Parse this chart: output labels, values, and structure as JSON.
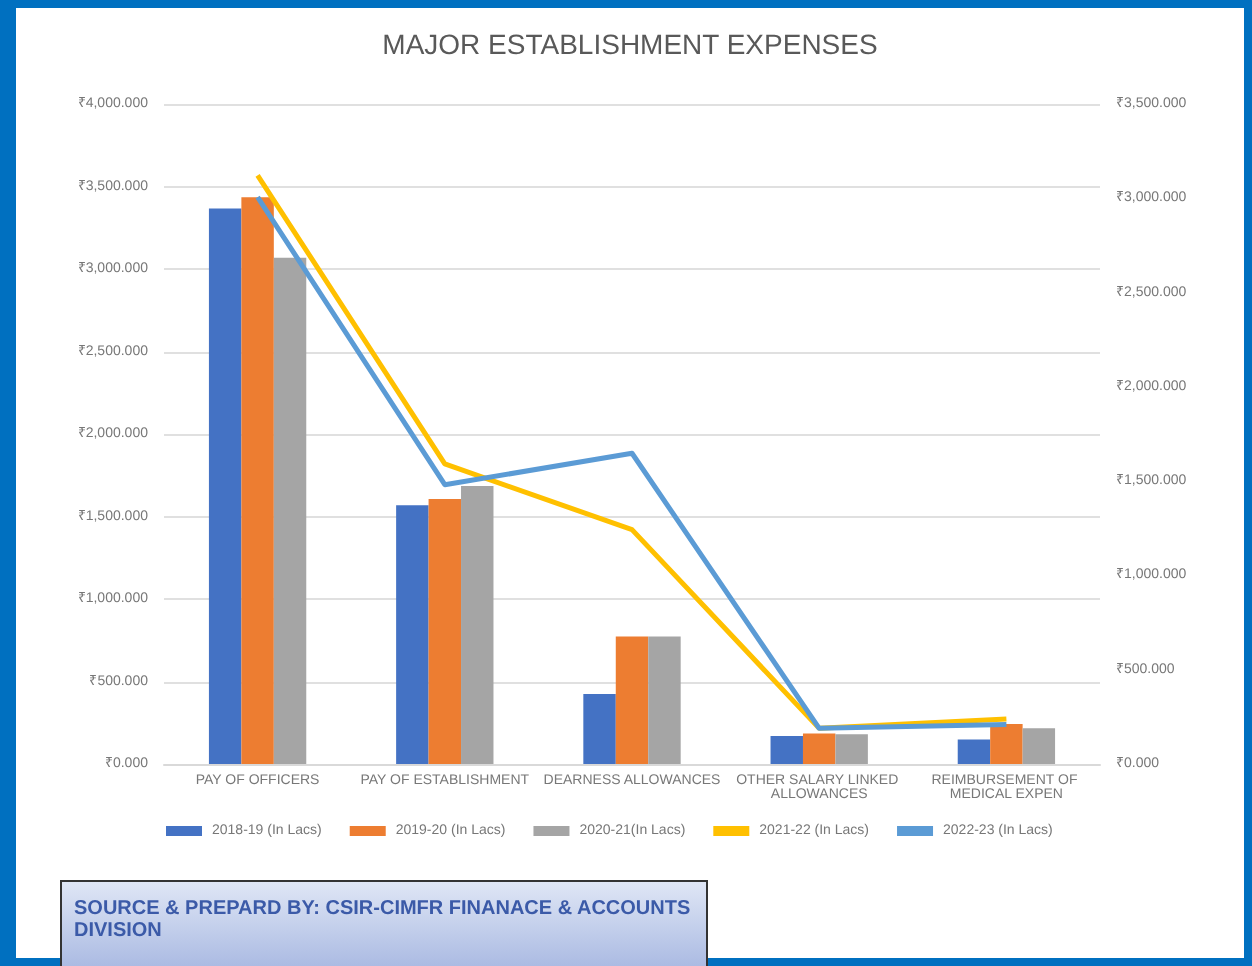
{
  "chart_data": {
    "type": "bar",
    "title": "MAJOR ESTABLISHMENT EXPENSES",
    "categories": [
      "PAY OF OFFICERS",
      "PAY OF ESTABLISHMENT",
      "DEARNESS ALLOWANCES",
      "OTHER SALARY LINKED ALLOWANCES",
      "REIMBURSEMENT OF MEDICAL EXPEN"
    ],
    "series": [
      {
        "name": "2018-19 (In Lacs)",
        "color": "#4472c4",
        "values": [
          3367,
          1568,
          424,
          170,
          148
        ]
      },
      {
        "name": "2019-20 (In Lacs)",
        "color": "#ed7d31",
        "values": [
          3435,
          1606,
          773,
          185,
          242
        ]
      },
      {
        "name": "2020-21(In Lacs)",
        "color": "#a5a5a5",
        "values": [
          3068,
          1685,
          773,
          180,
          216
        ]
      },
      {
        "name": "2021-22 (In Lacs)",
        "type": "line",
        "axis": "y2",
        "color": "#ffc000",
        "values": [
          3122,
          1591,
          1243,
          189,
          239
        ]
      },
      {
        "name": "2022-23 (In Lacs)",
        "type": "line",
        "axis": "y2",
        "color": "#5b9bd5",
        "values": [
          3006,
          1481,
          1648,
          189,
          209
        ]
      }
    ],
    "ylim": [
      0,
      4000
    ],
    "yticks": [
      {
        "value": 0,
        "label": "₹0.000"
      },
      {
        "value": 500,
        "label": "₹500.000"
      },
      {
        "value": 1000,
        "label": "₹1,000.000"
      },
      {
        "value": 1500,
        "label": "₹1,500.000"
      },
      {
        "value": 2000,
        "label": "₹2,000.000"
      },
      {
        "value": 2500,
        "label": "₹2,500.000"
      },
      {
        "value": 3000,
        "label": "₹3,000.000"
      },
      {
        "value": 3500,
        "label": "₹3,500.000"
      },
      {
        "value": 4000,
        "label": "₹4,000.000"
      }
    ],
    "y2lim": [
      0,
      3500
    ],
    "y2ticks": [
      {
        "value": 0,
        "label": "₹0.000"
      },
      {
        "value": 500,
        "label": "₹500.000"
      },
      {
        "value": 1000,
        "label": "₹1,000.000"
      },
      {
        "value": 1500,
        "label": "₹1,500.000"
      },
      {
        "value": 2000,
        "label": "₹2,000.000"
      },
      {
        "value": 2500,
        "label": "₹2,500.000"
      },
      {
        "value": 3000,
        "label": "₹3,000.000"
      },
      {
        "value": 3500,
        "label": "₹3,500.000"
      }
    ],
    "grid": "y",
    "legend": "bottom",
    "marker": "none",
    "line_style": "solid",
    "annotations": [
      "SOURCE & PREPARD BY: CSIR-CIMFR FINANACE & ACCOUNTS DIVISION"
    ]
  }
}
